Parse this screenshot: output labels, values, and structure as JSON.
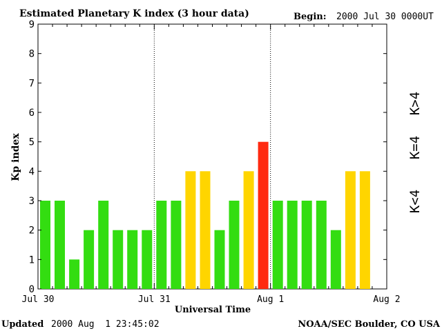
{
  "header": {
    "title": "Estimated Planetary K index (3 hour data)",
    "begin_label": "Begin:",
    "begin_value": "2000 Jul 30 0000UT"
  },
  "footer": {
    "updated_label": "Updated",
    "updated_value": "2000 Aug  1 23:45:02",
    "credit": "NOAA/SEC Boulder, CO USA"
  },
  "legend": {
    "low": "K<4",
    "mid": "K=4",
    "high": "K>4"
  },
  "colors": {
    "low": "#33dd11",
    "mid": "#ffd500",
    "high": "#ff2a10",
    "axis": "#000000"
  },
  "chart_data": {
    "type": "bar",
    "title": "Estimated Planetary K index (3 hour data)",
    "ylabel": "Kp index",
    "xlabel": "Universal Time",
    "ylim": [
      0,
      9
    ],
    "yticks": [
      "0",
      "1",
      "2",
      "3",
      "4",
      "5",
      "6",
      "7",
      "8",
      "9"
    ],
    "xticks": [
      "Jul 30",
      "Jul 31",
      "Aug 1",
      "Aug 2"
    ],
    "x_divider_ticks": [
      "Jul 31",
      "Aug 1"
    ],
    "slots_per_day": 8,
    "days": 3,
    "values": [
      3,
      3,
      1,
      2,
      3,
      2,
      2,
      2,
      3,
      3,
      4,
      4,
      2,
      3,
      4,
      5,
      3,
      3,
      3,
      3,
      2,
      4,
      4
    ]
  }
}
